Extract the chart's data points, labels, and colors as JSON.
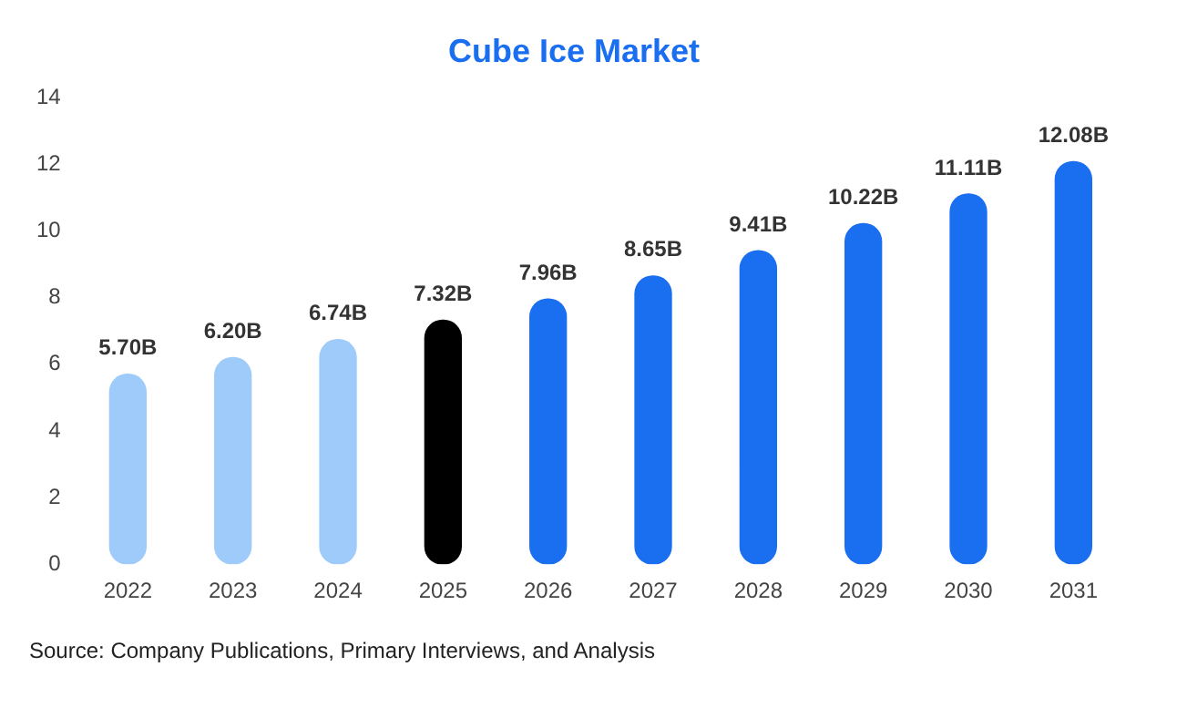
{
  "chart_data": {
    "type": "bar",
    "title": "Cube Ice Market",
    "categories": [
      "2022",
      "2023",
      "2024",
      "2025",
      "2026",
      "2027",
      "2028",
      "2029",
      "2030",
      "2031"
    ],
    "values": [
      5.7,
      6.2,
      6.74,
      7.32,
      7.96,
      8.65,
      9.41,
      10.22,
      11.11,
      12.08
    ],
    "colors": [
      "#9ecbfa",
      "#9ecbfa",
      "#9ecbfa",
      "#000000",
      "#1a6ef0",
      "#1a6ef0",
      "#1a6ef0",
      "#1a6ef0",
      "#1a6ef0",
      "#1a6ef0"
    ],
    "value_labels": [
      "5.70B",
      "6.20B",
      "6.74B",
      "7.32B",
      "7.96B",
      "8.65B",
      "9.41B",
      "10.22B",
      "11.11B",
      "12.08B"
    ],
    "ylim": [
      0,
      14
    ],
    "yticks": [
      0,
      2,
      4,
      6,
      8,
      10,
      12,
      14
    ],
    "grid": false,
    "annotations": [
      "Source: Company Publications, Primary Interviews, and Analysis"
    ]
  }
}
